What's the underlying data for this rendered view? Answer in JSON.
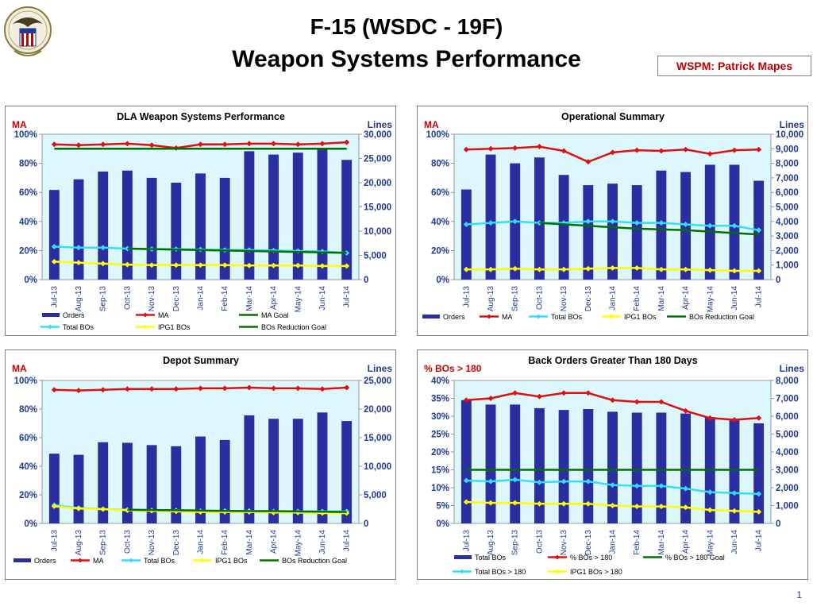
{
  "header": {
    "title_line1": "F-15 (WSDC - 19F)",
    "title_line2": "Weapon Systems Performance",
    "wspm_label": "WSPM:  Patrick Mapes"
  },
  "page_number": "1",
  "colors": {
    "orders": "#2a2ea0",
    "ma": "#e01010",
    "total_bos": "#33ddff",
    "ipg1_bos": "#ffff00",
    "goal": "#007000",
    "plot_bg": "#ddf8fd",
    "left_axis_title": "#cc0000",
    "right_axis_title": "#1f3a93"
  },
  "chart_data": [
    {
      "type": "bar",
      "title": "DLA Weapon Systems Performance",
      "left_axis_title": "MA",
      "right_axis_title": "Lines",
      "categories": [
        "Jul-13",
        "Aug-13",
        "Sep-13",
        "Oct-13",
        "Nov-13",
        "Dec-13",
        "Jan-14",
        "Feb-14",
        "Mar-14",
        "Apr-14",
        "May-14",
        "Jun-14",
        "Jul-14"
      ],
      "left_ticks": [
        "0%",
        "20%",
        "40%",
        "60%",
        "80%",
        "100%"
      ],
      "right_ticks": [
        "0",
        "5,000",
        "10,000",
        "15,000",
        "20,000",
        "25,000",
        "30,000"
      ],
      "left_range": [
        0,
        100
      ],
      "right_range": [
        0,
        30000
      ],
      "series": [
        {
          "name": "Orders",
          "kind": "bar",
          "axis": "right",
          "color_key": "orders",
          "values": [
            18500,
            20700,
            22300,
            22500,
            21000,
            20000,
            21900,
            21000,
            26500,
            25800,
            26200,
            27200,
            24700
          ]
        },
        {
          "name": "MA",
          "kind": "line",
          "axis": "left",
          "color_key": "ma",
          "marker": "diamond",
          "values": [
            93,
            92.5,
            93,
            93.5,
            92.5,
            90.5,
            93,
            93,
            93.5,
            93.5,
            93,
            93.5,
            94.5
          ]
        },
        {
          "name": "Total BOs",
          "kind": "line",
          "axis": "right",
          "color_key": "total_bos",
          "marker": "diamond",
          "values": [
            6800,
            6600,
            6600,
            6400,
            6300,
            6300,
            6200,
            6100,
            6100,
            6000,
            5900,
            5800,
            5500
          ]
        },
        {
          "name": "MA Goal",
          "kind": "line",
          "axis": "left",
          "color_key": "goal",
          "values": [
            90,
            90,
            90,
            90,
            90,
            90,
            90,
            90,
            90,
            90,
            90,
            90,
            90
          ]
        },
        {
          "name": "IPG1 BOs",
          "kind": "line",
          "axis": "right",
          "color_key": "ipg1_bos",
          "marker": "diamond",
          "values": [
            3700,
            3500,
            3300,
            3100,
            3000,
            3000,
            3000,
            3000,
            2900,
            2900,
            2900,
            2800,
            2800
          ]
        },
        {
          "name": "BOs Reduction Goal",
          "kind": "line",
          "axis": "right",
          "color_key": "goal",
          "values": [
            null,
            null,
            null,
            6400,
            6300,
            6200,
            6100,
            6000,
            5900,
            5800,
            5700,
            5600,
            5500
          ]
        }
      ],
      "legend_rows": [
        [
          "Orders",
          "MA",
          "MA Goal"
        ],
        [
          "Total BOs",
          "IPG1 BOs",
          "BOs Reduction Goal"
        ]
      ]
    },
    {
      "type": "bar",
      "title": "Operational Summary",
      "left_axis_title": "MA",
      "right_axis_title": "Lines",
      "categories": [
        "Jul-13",
        "Aug-13",
        "Sep-13",
        "Oct-13",
        "Nov-13",
        "Dec-13",
        "Jan-14",
        "Feb-14",
        "Mar-14",
        "Apr-14",
        "May-14",
        "Jun-14",
        "Jul-14"
      ],
      "left_ticks": [
        "0%",
        "20%",
        "40%",
        "60%",
        "80%",
        "100%"
      ],
      "right_ticks": [
        "0",
        "1,000",
        "2,000",
        "3,000",
        "4,000",
        "5,000",
        "6,000",
        "7,000",
        "8,000",
        "9,000",
        "10,000"
      ],
      "left_range": [
        0,
        100
      ],
      "right_range": [
        0,
        10000
      ],
      "series": [
        {
          "name": "Orders",
          "kind": "bar",
          "axis": "right",
          "color_key": "orders",
          "values": [
            6200,
            8600,
            8000,
            8400,
            7200,
            6500,
            6600,
            6500,
            7500,
            7400,
            7900,
            7900,
            6800
          ]
        },
        {
          "name": "MA",
          "kind": "line",
          "axis": "left",
          "color_key": "ma",
          "marker": "diamond",
          "values": [
            89.5,
            90,
            90.5,
            91.5,
            88.5,
            81,
            87.5,
            89,
            88.5,
            89.5,
            86.5,
            89,
            89.5
          ]
        },
        {
          "name": "Total BOs",
          "kind": "line",
          "axis": "right",
          "color_key": "total_bos",
          "marker": "diamond",
          "values": [
            3800,
            3900,
            4000,
            3900,
            3900,
            4000,
            4000,
            3900,
            3900,
            3800,
            3700,
            3700,
            3400
          ]
        },
        {
          "name": "IPG1 BOs",
          "kind": "line",
          "axis": "right",
          "color_key": "ipg1_bos",
          "marker": "diamond",
          "values": [
            700,
            700,
            750,
            700,
            700,
            750,
            800,
            800,
            700,
            700,
            650,
            600,
            600
          ]
        },
        {
          "name": "BOs Reduction Goal",
          "kind": "line",
          "axis": "right",
          "color_key": "goal",
          "values": [
            null,
            null,
            null,
            3900,
            3800,
            3700,
            3600,
            3500,
            3450,
            3400,
            3300,
            3200,
            3100
          ]
        }
      ],
      "legend_rows": [
        [
          "Orders",
          "MA",
          "Total BOs",
          "IPG1 BOs",
          "BOs Reduction Goal"
        ]
      ]
    },
    {
      "type": "bar",
      "title": "Depot Summary",
      "left_axis_title": "MA",
      "right_axis_title": "Lines",
      "categories": [
        "Jul-13",
        "Aug-13",
        "Sep-13",
        "Oct-13",
        "Nov-13",
        "Dec-13",
        "Jan-14",
        "Feb-14",
        "Mar-14",
        "Apr-14",
        "May-14",
        "Jun-14",
        "Jul-14"
      ],
      "left_ticks": [
        "0%",
        "20%",
        "40%",
        "60%",
        "80%",
        "100%"
      ],
      "right_ticks": [
        "0",
        "5,000",
        "10,000",
        "15,000",
        "20,000",
        "25,000"
      ],
      "left_range": [
        0,
        100
      ],
      "right_range": [
        0,
        25000
      ],
      "series": [
        {
          "name": "Orders",
          "kind": "bar",
          "axis": "right",
          "color_key": "orders",
          "values": [
            12200,
            12000,
            14200,
            14100,
            13700,
            13500,
            15200,
            14600,
            18900,
            18300,
            18300,
            19400,
            17900
          ]
        },
        {
          "name": "MA",
          "kind": "line",
          "axis": "left",
          "color_key": "ma",
          "marker": "diamond",
          "values": [
            93.5,
            93,
            93.5,
            94,
            94,
            94,
            94.5,
            94.5,
            95,
            94.5,
            94.5,
            94,
            95
          ]
        },
        {
          "name": "Total BOs",
          "kind": "line",
          "axis": "right",
          "color_key": "total_bos",
          "marker": "diamond",
          "values": [
            3200,
            2700,
            2500,
            2400,
            2300,
            2300,
            2200,
            2200,
            2200,
            2100,
            2100,
            2100,
            2100
          ]
        },
        {
          "name": "IPG1 BOs",
          "kind": "line",
          "axis": "right",
          "color_key": "ipg1_bos",
          "marker": "diamond",
          "values": [
            3000,
            2600,
            2500,
            2300,
            2200,
            2100,
            2000,
            2000,
            2000,
            1900,
            1900,
            1800,
            1800
          ]
        },
        {
          "name": "BOs Reduction Goal",
          "kind": "line",
          "axis": "right",
          "color_key": "goal",
          "values": [
            null,
            null,
            null,
            2400,
            2350,
            2300,
            2250,
            2200,
            2150,
            2150,
            2100,
            2050,
            2000
          ]
        }
      ],
      "legend_rows": [
        [
          "Orders",
          "MA",
          "Total BOs",
          "IPG1 BOs",
          "BOs Reduction Goal"
        ]
      ]
    },
    {
      "type": "bar",
      "title": "Back Orders Greater Than 180 Days",
      "left_axis_title": "% BOs > 180",
      "right_axis_title": "Lines",
      "categories": [
        "Jul-13",
        "Aug-13",
        "Sep-13",
        "Oct-13",
        "Nov-13",
        "Dec-13",
        "Jan-14",
        "Feb-14",
        "Mar-14",
        "Apr-14",
        "May-14",
        "Jun-14",
        "Jul-14"
      ],
      "left_ticks": [
        "0%",
        "5%",
        "10%",
        "15%",
        "20%",
        "25%",
        "30%",
        "35%",
        "40%"
      ],
      "right_ticks": [
        "0",
        "1,000",
        "2,000",
        "3,000",
        "4,000",
        "5,000",
        "6,000",
        "7,000",
        "8,000"
      ],
      "left_range": [
        0,
        40
      ],
      "right_range": [
        0,
        8000
      ],
      "series": [
        {
          "name": "Total BOs",
          "kind": "bar",
          "axis": "right",
          "color_key": "orders",
          "values": [
            6900,
            6650,
            6650,
            6450,
            6350,
            6400,
            6250,
            6200,
            6200,
            6150,
            5950,
            5800,
            5600
          ]
        },
        {
          "name": "% BOs > 180",
          "kind": "line",
          "axis": "left",
          "color_key": "ma",
          "marker": "diamond",
          "values": [
            34.5,
            35,
            36.5,
            35.5,
            36.5,
            36.5,
            34.5,
            34,
            34,
            31.5,
            29.5,
            29,
            29.5
          ]
        },
        {
          "name": "% BOs > 180 Goal",
          "kind": "line",
          "axis": "left",
          "color_key": "goal",
          "values": [
            15,
            15,
            15,
            15,
            15,
            15,
            15,
            15,
            15,
            15,
            15,
            15,
            15
          ]
        },
        {
          "name": "Total BOs > 180",
          "kind": "line",
          "axis": "right",
          "color_key": "total_bos",
          "marker": "diamond",
          "values": [
            2400,
            2350,
            2450,
            2300,
            2350,
            2350,
            2150,
            2100,
            2100,
            1950,
            1750,
            1700,
            1650
          ]
        },
        {
          "name": "IPG1 BOs > 180",
          "kind": "line",
          "axis": "right",
          "color_key": "ipg1_bos",
          "marker": "diamond",
          "values": [
            1200,
            1150,
            1150,
            1100,
            1100,
            1100,
            1000,
            950,
            950,
            900,
            750,
            700,
            650
          ]
        }
      ],
      "legend_rows": [
        [
          "Total BOs",
          "% BOs > 180",
          "% BOs > 180 Goal"
        ],
        [
          "Total BOs > 180",
          "IPG1 BOs > 180"
        ]
      ]
    }
  ]
}
